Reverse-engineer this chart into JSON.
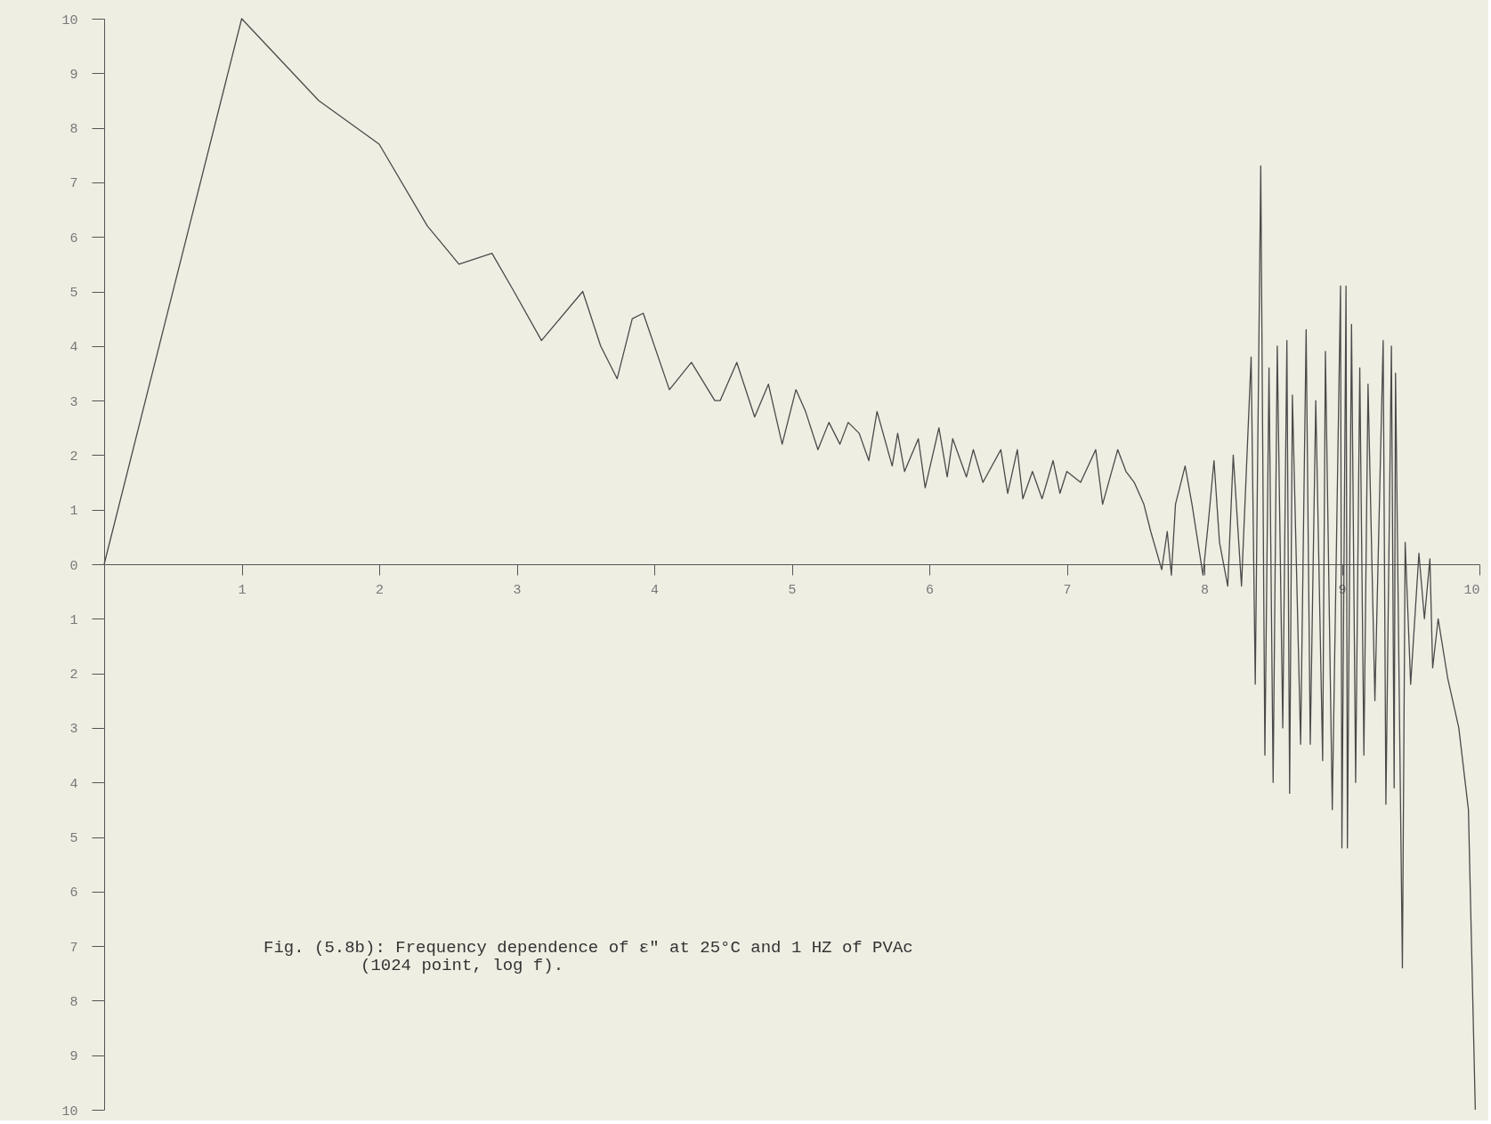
{
  "chart_data": {
    "type": "line",
    "xlim": [
      0,
      10
    ],
    "ylim": [
      -10,
      10
    ],
    "xticks": [
      1,
      2,
      3,
      4,
      5,
      6,
      7,
      8,
      9,
      10
    ],
    "yticks": [
      {
        "value": -10,
        "label": "10"
      },
      {
        "value": -9,
        "label": "9"
      },
      {
        "value": -8,
        "label": "8"
      },
      {
        "value": -7,
        "label": "7"
      },
      {
        "value": -6,
        "label": "6"
      },
      {
        "value": -5,
        "label": "5"
      },
      {
        "value": -4,
        "label": "4"
      },
      {
        "value": -3,
        "label": "3"
      },
      {
        "value": -2,
        "label": "2"
      },
      {
        "value": -1,
        "label": "1"
      },
      0,
      1,
      2,
      3,
      4,
      5,
      6,
      7,
      8,
      9,
      10
    ],
    "grid": false,
    "marker": "none",
    "line_style": "solid",
    "series": [
      {
        "color": "#4a4a4a",
        "x": [
          0,
          1.0,
          1.56,
          2.0,
          2.35,
          2.58,
          2.82,
          2.98,
          3.18,
          3.48,
          3.61,
          3.73,
          3.84,
          3.92,
          4.11,
          4.27,
          4.44,
          4.48,
          4.6,
          4.73,
          4.83,
          4.93,
          5.03,
          5.1,
          5.19,
          5.27,
          5.35,
          5.41,
          5.49,
          5.56,
          5.62,
          5.73,
          5.77,
          5.82,
          5.92,
          5.97,
          6.07,
          6.13,
          6.17,
          6.27,
          6.32,
          6.39,
          6.52,
          6.57,
          6.64,
          6.68,
          6.75,
          6.82,
          6.9,
          6.95,
          7.0,
          7.1,
          7.21,
          7.26,
          7.37,
          7.43,
          7.49,
          7.56,
          7.61,
          7.69,
          7.73,
          7.76,
          7.79,
          7.86,
          7.91,
          7.99,
          8.03,
          8.07,
          8.11,
          8.17,
          8.21,
          8.27,
          8.34,
          8.37,
          8.41,
          8.44,
          8.47,
          8.5,
          8.53,
          8.57,
          8.6,
          8.62,
          8.64,
          8.7,
          8.74,
          8.77,
          8.81,
          8.86,
          8.88,
          8.93,
          8.99,
          9.0,
          9.03,
          9.04,
          9.07,
          9.1,
          9.13,
          9.16,
          9.19,
          9.24,
          9.3,
          9.32,
          9.36,
          9.38,
          9.39,
          9.44,
          9.46,
          9.5,
          9.56,
          9.6,
          9.64,
          9.66,
          9.7,
          9.77,
          9.85,
          9.92,
          9.97
        ],
        "values": [
          0,
          10.0,
          8.5,
          7.7,
          6.2,
          5.5,
          5.7,
          5.0,
          4.1,
          5.0,
          4.0,
          3.4,
          4.5,
          4.6,
          3.2,
          3.7,
          3.0,
          3.0,
          3.7,
          2.7,
          3.3,
          2.2,
          3.2,
          2.8,
          2.1,
          2.6,
          2.2,
          2.6,
          2.4,
          1.9,
          2.8,
          1.8,
          2.4,
          1.7,
          2.3,
          1.4,
          2.5,
          1.6,
          2.3,
          1.6,
          2.1,
          1.5,
          2.1,
          1.3,
          2.1,
          1.2,
          1.7,
          1.2,
          1.9,
          1.3,
          1.7,
          1.5,
          2.1,
          1.1,
          2.1,
          1.7,
          1.5,
          1.1,
          0.6,
          -0.1,
          0.6,
          -0.2,
          1.1,
          1.8,
          1.1,
          -0.2,
          0.8,
          1.9,
          0.4,
          -0.4,
          2.0,
          -0.4,
          3.8,
          -2.2,
          7.3,
          -3.5,
          3.6,
          -4.0,
          4.0,
          -3.0,
          4.1,
          -4.2,
          3.1,
          -3.3,
          4.3,
          -3.3,
          3.0,
          -3.6,
          3.9,
          -4.5,
          5.1,
          -5.2,
          5.1,
          -5.2,
          4.4,
          -4.0,
          3.6,
          -3.5,
          3.3,
          -2.5,
          4.1,
          -4.4,
          4.0,
          -4.1,
          3.5,
          -7.4,
          0.4,
          -2.2,
          0.2,
          -1.0,
          0.1,
          -1.9,
          -1.0,
          -2.1,
          -3.0,
          -4.5,
          -10.0
        ]
      }
    ],
    "annotations": [
      "Fig. (5.8b):  Frequency dependence of ε\" at 25°C and 1 HZ of PVAc",
      "(1024 point,  log f)."
    ]
  }
}
